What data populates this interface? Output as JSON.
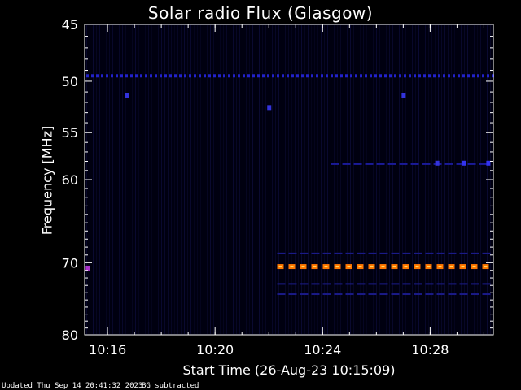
{
  "chart_data": {
    "type": "heatmap",
    "title": "Solar radio Flux (Glasgow)",
    "ylabel": "Frequency [MHz]",
    "xlabel": "Start Time (26-Aug-23 10:15:09)",
    "y_axis": {
      "scale": "log",
      "reversed": true,
      "range": [
        45,
        80
      ],
      "ticks": [
        45,
        50,
        55,
        60,
        70,
        80
      ]
    },
    "x_axis": {
      "range_minutes_from_start": [
        0,
        15.2
      ],
      "ticks": [
        {
          "label": "10:16",
          "minutes": 0.85
        },
        {
          "label": "10:20",
          "minutes": 4.85
        },
        {
          "label": "10:24",
          "minutes": 8.85
        },
        {
          "label": "10:28",
          "minutes": 12.85
        }
      ]
    },
    "features": [
      {
        "name": "",
        "freq_mhz": 49.5,
        "t_start": 0.0,
        "t_end": 15.2,
        "color": "#2222cc",
        "kind": "dotted"
      },
      {
        "name": "",
        "freq_mhz": 70.5,
        "t_start": 7.1,
        "t_end": 15.2,
        "color": "#ff7700",
        "kind": "dashed_strong"
      },
      {
        "name": "",
        "freq_mhz": 68.8,
        "t_start": 7.1,
        "t_end": 15.2,
        "color": "#1a1a88",
        "kind": "dashed"
      },
      {
        "name": "",
        "freq_mhz": 72.8,
        "t_start": 7.1,
        "t_end": 15.2,
        "color": "#1a1a88",
        "kind": "dashed"
      },
      {
        "name": "",
        "freq_mhz": 74.2,
        "t_start": 7.1,
        "t_end": 15.2,
        "color": "#1a1a88",
        "kind": "dashed"
      },
      {
        "name": "",
        "freq_mhz": 58.3,
        "t_start": 9.1,
        "t_end": 15.2,
        "color": "#1a1a99",
        "kind": "dashed"
      }
    ],
    "spots": [
      {
        "freq_mhz": 70.7,
        "t": 0.1,
        "color": "#aa33cc"
      },
      {
        "freq_mhz": 51.3,
        "t": 1.55,
        "color": "#3333dd"
      },
      {
        "freq_mhz": 52.5,
        "t": 6.85,
        "color": "#3333dd"
      },
      {
        "freq_mhz": 51.3,
        "t": 11.85,
        "color": "#3333dd"
      },
      {
        "freq_mhz": 58.2,
        "t": 13.1,
        "color": "#3333dd"
      },
      {
        "freq_mhz": 58.2,
        "t": 14.1,
        "color": "#3333ee"
      },
      {
        "freq_mhz": 58.2,
        "t": 15.0,
        "color": "#3333ee"
      }
    ],
    "colors": {
      "background": "#000008",
      "axis": "#ffffff"
    },
    "grid": false
  },
  "footer": {
    "updated": "Updated Thu Sep 14 20:41:32 2023",
    "bg_note": "BG subtracted"
  }
}
